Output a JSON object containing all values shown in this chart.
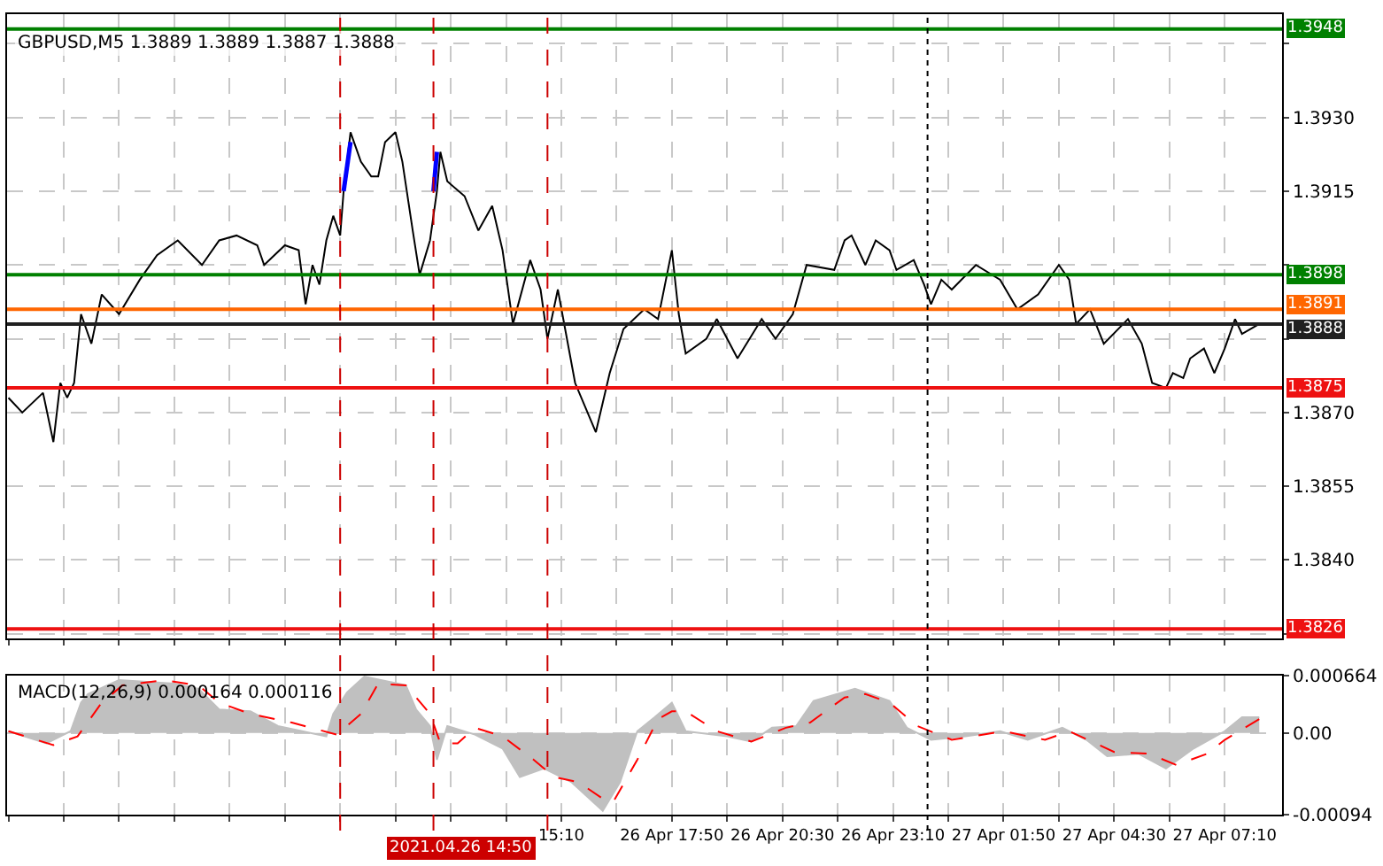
{
  "chart_data": [
    {
      "type": "line",
      "title": "GBPUSD,M5 1.3889 1.3889 1.3887 1.3888",
      "grid": true,
      "tick_labels": "y",
      "xlim": [
        "2021-04-26T01:48",
        "2021-04-27T08:33"
      ],
      "ylim": [
        1.3824,
        1.3951
      ],
      "yticks": [
        {
          "value": 1.3945,
          "label": null
        },
        {
          "value": 1.393,
          "label": "1.3930"
        },
        1.3915,
        {
          "value": 1.39,
          "label": null
        },
        {
          "value": 1.3885,
          "label": null
        },
        {
          "value": 1.387,
          "label": "1.3870"
        },
        1.3855,
        {
          "value": 1.384,
          "label": "1.3840"
        },
        {
          "value": 1.3825,
          "label": null
        }
      ],
      "xticks": [
        {
          "value": "2021-04-26T01:50",
          "label": null
        },
        {
          "value": "2021-04-26T03:10",
          "label": null
        },
        {
          "value": "2021-04-26T04:30",
          "label": null
        },
        {
          "value": "2021-04-26T05:50",
          "label": null
        },
        {
          "value": "2021-04-26T07:10",
          "label": null
        },
        {
          "value": "2021-04-26T08:30",
          "label": null
        },
        {
          "value": "2021-04-26T09:50",
          "label": null
        },
        {
          "value": "2021-04-26T11:10",
          "label": null
        },
        {
          "value": "2021-04-26T12:30",
          "label": null
        },
        {
          "value": "2021-04-26T13:50",
          "label": null
        },
        {
          "value": "2021-04-26T15:10",
          "label": null
        },
        {
          "value": "2021-04-26T16:30",
          "label": null
        },
        {
          "value": "2021-04-26T17:50",
          "label": null
        },
        {
          "value": "2021-04-26T19:10",
          "label": null
        },
        {
          "value": "2021-04-26T20:30",
          "label": null
        },
        {
          "value": "2021-04-26T21:50",
          "label": null
        },
        {
          "value": "2021-04-26T23:10",
          "label": null
        },
        {
          "value": "2021-04-27T00:30",
          "label": null
        },
        {
          "value": "2021-04-27T01:50",
          "label": null
        },
        {
          "value": "2021-04-27T03:10",
          "label": null
        },
        {
          "value": "2021-04-27T04:30",
          "label": null
        },
        {
          "value": "2021-04-27T05:50",
          "label": null
        },
        {
          "value": "2021-04-27T07:10",
          "label": null
        }
      ],
      "series": [
        {
          "color": "#000000",
          "x": [
            "2021-04-26T01:50",
            "2021-04-26T02:10",
            "2021-04-26T02:40",
            "2021-04-26T02:55",
            "2021-04-26T03:05",
            "2021-04-26T03:15",
            "2021-04-26T03:25",
            "2021-04-26T03:35",
            "2021-04-26T03:50",
            "2021-04-26T04:05",
            "2021-04-26T04:30",
            "2021-04-26T05:00",
            "2021-04-26T05:25",
            "2021-04-26T05:55",
            "2021-04-26T06:30",
            "2021-04-26T06:55",
            "2021-04-26T07:20",
            "2021-04-26T07:50",
            "2021-04-26T08:00",
            "2021-04-26T08:30",
            "2021-04-26T08:50",
            "2021-04-26T09:00",
            "2021-04-26T09:10",
            "2021-04-26T09:20",
            "2021-04-26T09:30",
            "2021-04-26T09:40",
            "2021-04-26T09:50",
            "2021-04-26T09:55",
            "2021-04-26T10:05",
            "2021-04-26T10:20",
            "2021-04-26T10:35",
            "2021-04-26T10:45",
            "2021-04-26T10:55",
            "2021-04-26T11:10",
            "2021-04-26T11:20",
            "2021-04-26T11:35",
            "2021-04-26T11:45",
            "2021-04-26T12:00",
            "2021-04-26T12:10",
            "2021-04-26T12:15",
            "2021-04-26T12:25",
            "2021-04-26T12:50",
            "2021-04-26T13:10",
            "2021-04-26T13:30",
            "2021-04-26T13:45",
            "2021-04-26T14:00",
            "2021-04-26T14:25",
            "2021-04-26T14:40",
            "2021-04-26T14:50",
            "2021-04-26T15:05",
            "2021-04-26T15:30",
            "2021-04-26T16:00",
            "2021-04-26T16:20",
            "2021-04-26T16:40",
            "2021-04-26T17:10",
            "2021-04-26T17:30",
            "2021-04-26T17:50",
            "2021-04-26T18:00",
            "2021-04-26T18:10",
            "2021-04-26T18:40",
            "2021-04-26T18:55",
            "2021-04-26T19:25",
            "2021-04-26T20:00",
            "2021-04-26T20:20",
            "2021-04-26T20:45",
            "2021-04-26T21:05",
            "2021-04-26T21:45",
            "2021-04-26T22:00",
            "2021-04-26T22:10",
            "2021-04-26T22:30",
            "2021-04-26T22:45",
            "2021-04-26T23:05",
            "2021-04-26T23:15",
            "2021-04-26T23:40",
            "2021-04-26T23:55",
            "2021-04-27T00:05",
            "2021-04-27T00:20",
            "2021-04-27T00:35",
            "2021-04-27T01:10",
            "2021-04-27T01:45",
            "2021-04-27T02:10",
            "2021-04-27T02:40",
            "2021-04-27T03:10",
            "2021-04-27T03:25",
            "2021-04-27T03:35",
            "2021-04-27T03:55",
            "2021-04-27T04:15",
            "2021-04-27T04:50",
            "2021-04-27T05:10",
            "2021-04-27T05:25",
            "2021-04-27T05:45",
            "2021-04-27T05:55",
            "2021-04-27T06:10",
            "2021-04-27T06:20",
            "2021-04-27T06:40",
            "2021-04-27T06:55",
            "2021-04-27T07:10",
            "2021-04-27T07:25",
            "2021-04-27T07:35",
            "2021-04-27T08:00"
          ],
          "values": [
            1.3873,
            1.387,
            1.3874,
            1.3864,
            1.3876,
            1.3873,
            1.3876,
            1.389,
            1.3884,
            1.3894,
            1.389,
            1.3897,
            1.3902,
            1.3905,
            1.39,
            1.3905,
            1.3906,
            1.3904,
            1.39,
            1.3904,
            1.3903,
            1.3892,
            1.39,
            1.3896,
            1.3905,
            1.391,
            1.3906,
            1.3915,
            1.3927,
            1.3921,
            1.3918,
            1.3918,
            1.3925,
            1.3927,
            1.3921,
            1.3907,
            1.3898,
            1.3905,
            1.3915,
            1.3923,
            1.3917,
            1.3914,
            1.3907,
            1.3912,
            1.3903,
            1.3888,
            1.3901,
            1.3895,
            1.3885,
            1.3895,
            1.3876,
            1.3866,
            1.3878,
            1.3887,
            1.3891,
            1.3889,
            1.3903,
            1.389,
            1.3882,
            1.3885,
            1.3889,
            1.3881,
            1.3889,
            1.3885,
            1.389,
            1.39,
            1.3899,
            1.3905,
            1.3906,
            1.39,
            1.3905,
            1.3903,
            1.3899,
            1.3901,
            1.3896,
            1.3892,
            1.3897,
            1.3895,
            1.39,
            1.3897,
            1.3891,
            1.3894,
            1.39,
            1.3897,
            1.3888,
            1.3891,
            1.3884,
            1.3889,
            1.3884,
            1.3876,
            1.3875,
            1.3878,
            1.3877,
            1.3881,
            1.3883,
            1.3878,
            1.3883,
            1.3889,
            1.3886,
            1.3888
          ]
        },
        {
          "color": "#0000ff",
          "x": [
            "2021-04-26T09:55",
            "2021-04-26T10:05"
          ],
          "values": [
            1.3915,
            1.3925
          ]
        },
        {
          "color": "#0000ff",
          "x": [
            "2021-04-26T12:05",
            "2021-04-26T12:10"
          ],
          "values": [
            1.3915,
            1.3923
          ]
        }
      ],
      "ref_lines": [
        {
          "axis": "y",
          "value": 1.3948,
          "label": "1.3948",
          "color": "#008000"
        },
        {
          "axis": "y",
          "value": 1.3898,
          "label": "1.3898",
          "color": "#008000"
        },
        {
          "axis": "y",
          "value": 1.3891,
          "label": "1.3891",
          "color": "#ff6600"
        },
        {
          "axis": "y",
          "value": 1.3888,
          "label": "1.3888",
          "color": "#202020"
        },
        {
          "axis": "y",
          "value": 1.3875,
          "label": "1.3875",
          "color": "#ee1111"
        },
        {
          "axis": "y",
          "value": 1.3826,
          "label": "1.3826",
          "color": "#ee1111"
        },
        {
          "axis": "x",
          "value": "2021-04-26T09:50",
          "color": "#cc0000",
          "line_style": "dashed"
        },
        {
          "axis": "x",
          "value": "2021-04-26T12:05",
          "color": "#cc0000",
          "line_style": "dashed"
        },
        {
          "axis": "x",
          "value": "2021-04-26T14:50",
          "label": "2021.04.26 14:50",
          "color": "#cc0000",
          "line_style": "dashed"
        },
        {
          "axis": "x",
          "value": "2021-04-27T00:00",
          "color": "#000000",
          "line_style": "dotted"
        }
      ]
    },
    {
      "type": "area",
      "title": "MACD(12,26,9) 0.000164 0.000116",
      "grid": true,
      "xlim": [
        "2021-04-26T01:48",
        "2021-04-27T08:33"
      ],
      "ylim": [
        -0.00094,
        0.000664
      ],
      "yticks": [
        0.000664,
        {
          "value": 0,
          "label": "0.00"
        },
        -0.00094
      ],
      "xticks": [
        {
          "value": "2021-04-26T01:50",
          "label": null
        },
        {
          "value": "2021-04-26T03:10",
          "label": null
        },
        {
          "value": "2021-04-26T04:30",
          "label": null
        },
        {
          "value": "2021-04-26T05:50",
          "label": null
        },
        {
          "value": "2021-04-26T07:10",
          "label": null
        },
        {
          "value": "2021-04-26T08:30",
          "label": null
        },
        {
          "value": "2021-04-26T09:50",
          "label": null
        },
        {
          "value": "2021-04-26T11:10",
          "label": null
        },
        {
          "value": "2021-04-26T12:30",
          "label": null
        },
        {
          "value": "2021-04-26T13:50",
          "label": null
        },
        {
          "value": "2021-04-26T15:10",
          "label": "15:10"
        },
        {
          "value": "2021-04-26T16:30",
          "label": null
        },
        {
          "value": "2021-04-26T17:50",
          "label": "26 Apr 17:50"
        },
        {
          "value": "2021-04-26T19:10",
          "label": null
        },
        {
          "value": "2021-04-26T20:30",
          "label": "26 Apr 20:30"
        },
        {
          "value": "2021-04-26T21:50",
          "label": null
        },
        {
          "value": "2021-04-26T23:10",
          "label": "26 Apr 23:10"
        },
        {
          "value": "2021-04-27T00:30",
          "label": null
        },
        {
          "value": "2021-04-27T01:50",
          "label": "27 Apr 01:50"
        },
        {
          "value": "2021-04-27T03:10",
          "label": null
        },
        {
          "value": "2021-04-27T04:30",
          "label": "27 Apr 04:30"
        },
        {
          "value": "2021-04-27T05:50",
          "label": null
        },
        {
          "value": "2021-04-27T07:10",
          "label": "27 Apr 07:10"
        }
      ],
      "series": [
        {
          "color": "#c0c0c0",
          "x": [
            "2021-04-26T01:50",
            "2021-04-26T02:45",
            "2021-04-26T03:20",
            "2021-04-26T03:35",
            "2021-04-26T03:45",
            "2021-04-26T04:30",
            "2021-04-26T05:50",
            "2021-04-26T06:25",
            "2021-04-26T06:55",
            "2021-04-26T07:40",
            "2021-04-26T08:20",
            "2021-04-26T08:55",
            "2021-04-26T09:30",
            "2021-04-26T09:40",
            "2021-04-26T10:00",
            "2021-04-26T10:25",
            "2021-04-26T11:25",
            "2021-04-26T11:40",
            "2021-04-26T12:00",
            "2021-04-26T12:10",
            "2021-04-26T12:25",
            "2021-04-26T13:05",
            "2021-04-26T13:45",
            "2021-04-26T14:10",
            "2021-04-26T14:45",
            "2021-04-26T15:25",
            "2021-04-26T16:10",
            "2021-04-26T16:35",
            "2021-04-26T17:00",
            "2021-04-26T17:25",
            "2021-04-26T17:50",
            "2021-04-26T18:10",
            "2021-04-26T19:10",
            "2021-04-26T19:45",
            "2021-04-26T20:15",
            "2021-04-26T20:50",
            "2021-04-26T21:15",
            "2021-04-26T22:15",
            "2021-04-26T23:05",
            "2021-04-26T23:30",
            "2021-04-27T00:05",
            "2021-04-27T00:55",
            "2021-04-27T01:45",
            "2021-04-27T02:25",
            "2021-04-27T03:15",
            "2021-04-27T03:50",
            "2021-04-27T04:20",
            "2021-04-27T05:05",
            "2021-04-27T05:45",
            "2021-04-27T06:25",
            "2021-04-27T07:10",
            "2021-04-27T07:35",
            "2021-04-27T08:00"
          ],
          "values": [
            2e-05,
            -0.00012,
            2e-05,
            0.00035,
            0.00045,
            0.00061,
            0.00057,
            0.00051,
            0.00027,
            0.00025,
            8e-05,
            2e-05,
            -4e-05,
            0.00022,
            0.00047,
            0.00065,
            0.00055,
            0.00027,
            8e-05,
            -0.00031,
            8e-05,
            -2e-05,
            -0.00018,
            -0.00051,
            -0.00041,
            -0.00057,
            -0.0009,
            -0.00057,
            2e-05,
            0.00018,
            0.00035,
            2e-05,
            -4e-05,
            -0.0001,
            6e-05,
            8e-05,
            0.00037,
            0.00051,
            0.00037,
            6e-05,
            -8e-05,
            -4e-05,
            2e-05,
            -8e-05,
            6e-05,
            -8e-05,
            -0.00027,
            -0.00024,
            -0.00041,
            -0.00018,
            2e-05,
            0.00018,
            0.00018
          ]
        },
        {
          "type": "line",
          "color": "#ff0000",
          "line_style": "dashed",
          "x": [
            "2021-04-26T01:50",
            "2021-04-26T02:55",
            "2021-04-26T03:30",
            "2021-04-26T04:05",
            "2021-04-26T04:35",
            "2021-04-26T05:35",
            "2021-04-26T06:25",
            "2021-04-26T06:55",
            "2021-04-26T07:40",
            "2021-04-26T08:40",
            "2021-04-26T09:45",
            "2021-04-26T10:20",
            "2021-04-26T10:45",
            "2021-04-26T11:25",
            "2021-04-26T12:00",
            "2021-04-26T12:15",
            "2021-04-26T12:40",
            "2021-04-26T13:05",
            "2021-04-26T13:45",
            "2021-04-26T14:30",
            "2021-04-26T15:00",
            "2021-04-26T15:35",
            "2021-04-26T16:10",
            "2021-04-26T16:25",
            "2021-04-26T17:00",
            "2021-04-26T17:30",
            "2021-04-26T17:50",
            "2021-04-26T18:10",
            "2021-04-26T18:55",
            "2021-04-26T19:45",
            "2021-04-26T20:35",
            "2021-04-26T21:10",
            "2021-04-26T22:00",
            "2021-04-26T22:30",
            "2021-04-26T23:05",
            "2021-04-26T23:45",
            "2021-04-27T00:35",
            "2021-04-27T01:50",
            "2021-04-27T02:50",
            "2021-04-27T03:25",
            "2021-04-27T04:30",
            "2021-04-27T05:20",
            "2021-04-27T06:00",
            "2021-04-27T06:45",
            "2021-04-27T07:10",
            "2021-04-27T08:00"
          ],
          "values": [
            2e-05,
            -0.00014,
            -4e-05,
            0.00035,
            0.00055,
            0.00061,
            0.00055,
            0.00035,
            0.00022,
            0.00012,
            -2e-05,
            0.00022,
            0.00057,
            0.00055,
            0.00022,
            -0.00012,
            -0.00012,
            6e-05,
            -4e-05,
            -0.00031,
            -0.00051,
            -0.00057,
            -0.00076,
            -0.0008,
            -0.00031,
            0.00016,
            0.00025,
            0.00025,
            2e-05,
            -0.0001,
            6e-05,
            0.00012,
            0.00041,
            0.00045,
            0.00035,
            8e-05,
            -8e-05,
            2e-05,
            -8e-05,
            2e-05,
            -0.00022,
            -0.00024,
            -0.00037,
            -0.00024,
            -8e-05,
            0.00016
          ]
        }
      ]
    }
  ]
}
